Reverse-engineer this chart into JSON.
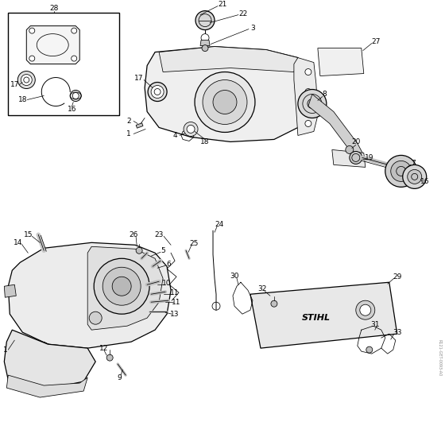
{
  "bg_color": "#ffffff",
  "line_color": "#000000",
  "watermark_text": "R121-GET-0093-A0"
}
